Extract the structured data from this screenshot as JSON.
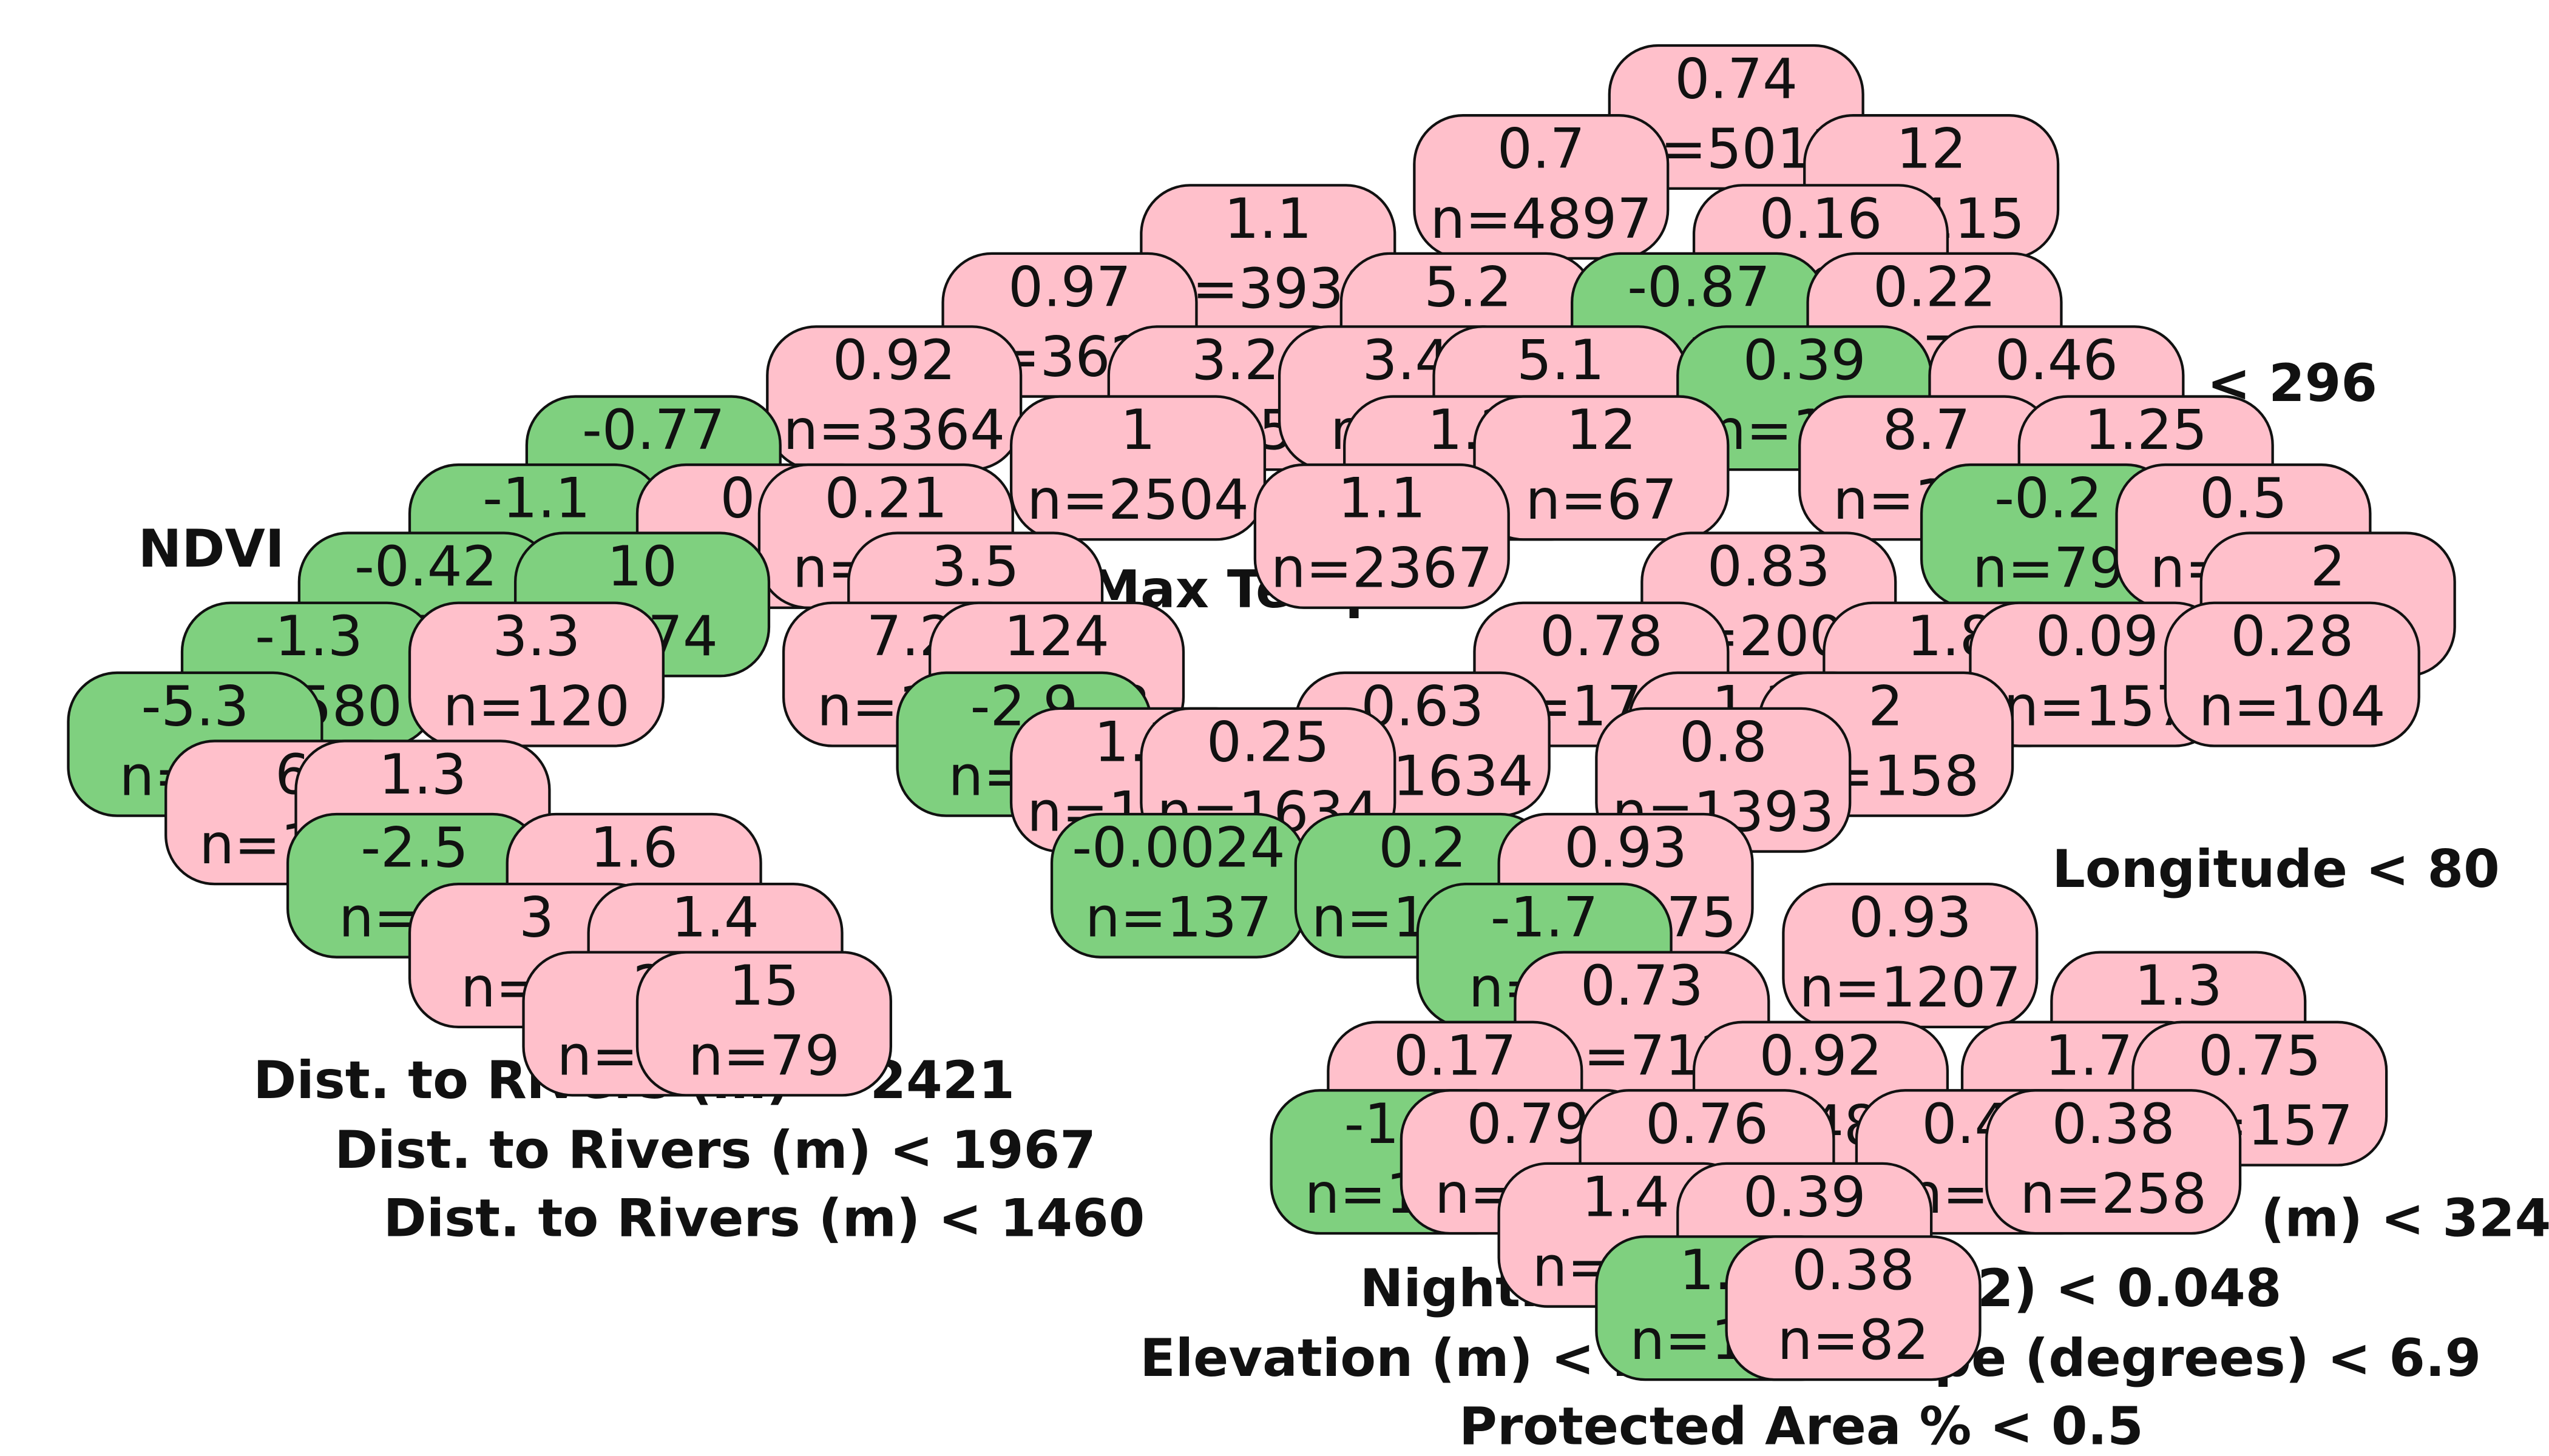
{
  "nodes": [
    {
      "value": "0.74",
      "n": "n=5012",
      "color": "#ffc0cb"
    },
    {
      "value": "0.7",
      "n": "n=4897",
      "color": "#ffc0cb"
    },
    {
      "value": "12",
      "n": "n=115",
      "color": "#ffc0cb"
    },
    {
      "value": "1.1",
      "n": "n=3938",
      "color": "#ffc0cb"
    },
    {
      "value": "0.16",
      "n": "n=959",
      "color": "#ffc0cb"
    },
    {
      "value": "0.97",
      "n": "n=3623",
      "color": "#ffc0cb"
    },
    {
      "value": "5.2",
      "n": "n=316",
      "color": "#ffc0cb"
    },
    {
      "value": "-0.87",
      "n": "n=198",
      "color": "#7fd07f"
    },
    {
      "value": "0.22",
      "n": "n=761",
      "color": "#ffc0cb"
    },
    {
      "value": "0.92",
      "n": "n=3364",
      "color": "#ffc0cb"
    },
    {
      "value": "3.2",
      "n": "n=259",
      "color": "#ffc0cb"
    },
    {
      "value": "3.4",
      "n": "n=73",
      "color": "#ffc0cb"
    },
    {
      "value": "5.1",
      "n": "n=243",
      "color": "#ffc0cb"
    },
    {
      "value": "0.39",
      "n": "n=188",
      "color": "#7fd07f"
    },
    {
      "value": "0.46",
      "n": "n=573",
      "color": "#ffc0cb"
    },
    {
      "value": "-0.77",
      "n": "n=860",
      "color": "#7fd07f"
    },
    {
      "value": "1",
      "n": "n=2504",
      "color": "#ffc0cb"
    },
    {
      "value": "1.2",
      "n": "n=175",
      "color": "#ffc0cb"
    },
    {
      "value": "12",
      "n": "n=67",
      "color": "#ffc0cb"
    },
    {
      "value": "8.7",
      "n": "n=158",
      "color": "#ffc0cb"
    },
    {
      "value": "1.25",
      "n": "n=410",
      "color": "#ffc0cb"
    },
    {
      "value": "-1.1",
      "n": "n=775",
      "color": "#7fd07f"
    },
    {
      "value": "0.6",
      "n": "n=85",
      "color": "#ffc0cb"
    },
    {
      "value": "0.21",
      "n": "n=133",
      "color": "#ffc0cb"
    },
    {
      "value": "1.1",
      "n": "n=2367",
      "color": "#ffc0cb"
    },
    {
      "value": "0.83",
      "n": "n=2005",
      "color": "#ffc0cb"
    },
    {
      "value": "-0.2",
      "n": "n=79",
      "color": "#7fd07f"
    },
    {
      "value": "0.5",
      "n": "n=336",
      "color": "#ffc0cb"
    },
    {
      "value": "-0.42",
      "n": "n=703",
      "color": "#7fd07f"
    },
    {
      "value": "10",
      "n": "n=74",
      "color": "#7fd07f"
    },
    {
      "value": "3.5",
      "n": "n=362",
      "color": "#ffc0cb"
    },
    {
      "value": "2",
      "n": "n=75",
      "color": "#ffc0cb"
    },
    {
      "value": "-1.3",
      "n": "n=580",
      "color": "#7fd07f"
    },
    {
      "value": "3.3",
      "n": "n=120",
      "color": "#ffc0cb"
    },
    {
      "value": "7.2",
      "n": "n=134",
      "color": "#ffc0cb"
    },
    {
      "value": "124",
      "n": "n=228",
      "color": "#ffc0cb"
    },
    {
      "value": "0.78",
      "n": "n=1792",
      "color": "#ffc0cb"
    },
    {
      "value": "1.8",
      "n": "n=321",
      "color": "#ffc0cb"
    },
    {
      "value": "0.09",
      "n": "n=157",
      "color": "#ffc0cb"
    },
    {
      "value": "0.28",
      "n": "n=104",
      "color": "#ffc0cb"
    },
    {
      "value": "-5.3",
      "n": "n=70",
      "color": "#7fd07f"
    },
    {
      "value": "-2.9",
      "n": "n=17",
      "color": "#7fd07f"
    },
    {
      "value": "0.63",
      "n": "n=1634",
      "color": "#ffc0cb"
    },
    {
      "value": "1.3",
      "n": "n=142",
      "color": "#ffc0cb"
    },
    {
      "value": "2",
      "n": "n=158",
      "color": "#ffc0cb"
    },
    {
      "value": "6",
      "n": "n=155",
      "color": "#ffc0cb"
    },
    {
      "value": "1.3",
      "n": "n=511",
      "color": "#ffc0cb"
    },
    {
      "value": "1.1",
      "n": "n=1010",
      "color": "#ffc0cb"
    },
    {
      "value": "0.25",
      "n": "n=1634",
      "color": "#ffc0cb"
    },
    {
      "value": "0.8",
      "n": "n=1393",
      "color": "#ffc0cb"
    },
    {
      "value": "-2.5",
      "n": "n=67",
      "color": "#7fd07f"
    },
    {
      "value": "1.6",
      "n": "n=351",
      "color": "#ffc0cb"
    },
    {
      "value": "-0.0024",
      "n": "n=137",
      "color": "#7fd07f"
    },
    {
      "value": "0.2",
      "n": "n=1041",
      "color": "#7fd07f"
    },
    {
      "value": "0.93",
      "n": "n=1275",
      "color": "#ffc0cb"
    },
    {
      "value": "3",
      "n": "n=70",
      "color": "#ffc0cb"
    },
    {
      "value": "1.4",
      "n": "n=289",
      "color": "#ffc0cb"
    },
    {
      "value": "-1.7",
      "n": "n=68",
      "color": "#7fd07f"
    },
    {
      "value": "0.93",
      "n": "n=1207",
      "color": "#ffc0cb"
    },
    {
      "value": "2",
      "n": "n=140",
      "color": "#ffc0cb"
    },
    {
      "value": "15",
      "n": "n=79",
      "color": "#ffc0cb"
    },
    {
      "value": "0.73",
      "n": "n=712",
      "color": "#ffc0cb"
    },
    {
      "value": "1.3",
      "n": "n=495",
      "color": "#ffc0cb"
    },
    {
      "value": "0.17",
      "n": "n=108",
      "color": "#ffc0cb"
    },
    {
      "value": "0.92",
      "n": "n=481",
      "color": "#ffc0cb"
    },
    {
      "value": "1.7",
      "n": "n=338",
      "color": "#ffc0cb"
    },
    {
      "value": "0.75",
      "n": "n=157",
      "color": "#ffc0cb"
    },
    {
      "value": "-1.3",
      "n": "n=108",
      "color": "#7fd07f"
    },
    {
      "value": "0.79",
      "n": "n=123",
      "color": "#ffc0cb"
    },
    {
      "value": "0.76",
      "n": "n=409",
      "color": "#ffc0cb"
    },
    {
      "value": "0.48",
      "n": "n=80",
      "color": "#ffc0cb"
    },
    {
      "value": "0.38",
      "n": "n=258",
      "color": "#ffc0cb"
    },
    {
      "value": "1.4",
      "n": "n=170",
      "color": "#ffc0cb"
    },
    {
      "value": "0.39",
      "n": "n=72",
      "color": "#ffc0cb"
    },
    {
      "value": "1.8",
      "n": "n=156",
      "color": "#7fd07f"
    },
    {
      "value": "0.38",
      "n": "n=82",
      "color": "#ffc0cb"
    }
  ],
  "splits": [
    "Protected Area % < 0.5",
    "Elevation (m) < 263",
    "Slope (degrees) < 6.9",
    "Nightime Lights (2002) < 0.048",
    "Dist. to Rivers (m) < 1460",
    "Dist. to Rivers (m) < 1967",
    "Dist. to Rivers (m) < 2421",
    "Longitude < 80",
    "NDVI",
    "< 296",
    "Max Temp",
    "(m) < 324"
  ]
}
